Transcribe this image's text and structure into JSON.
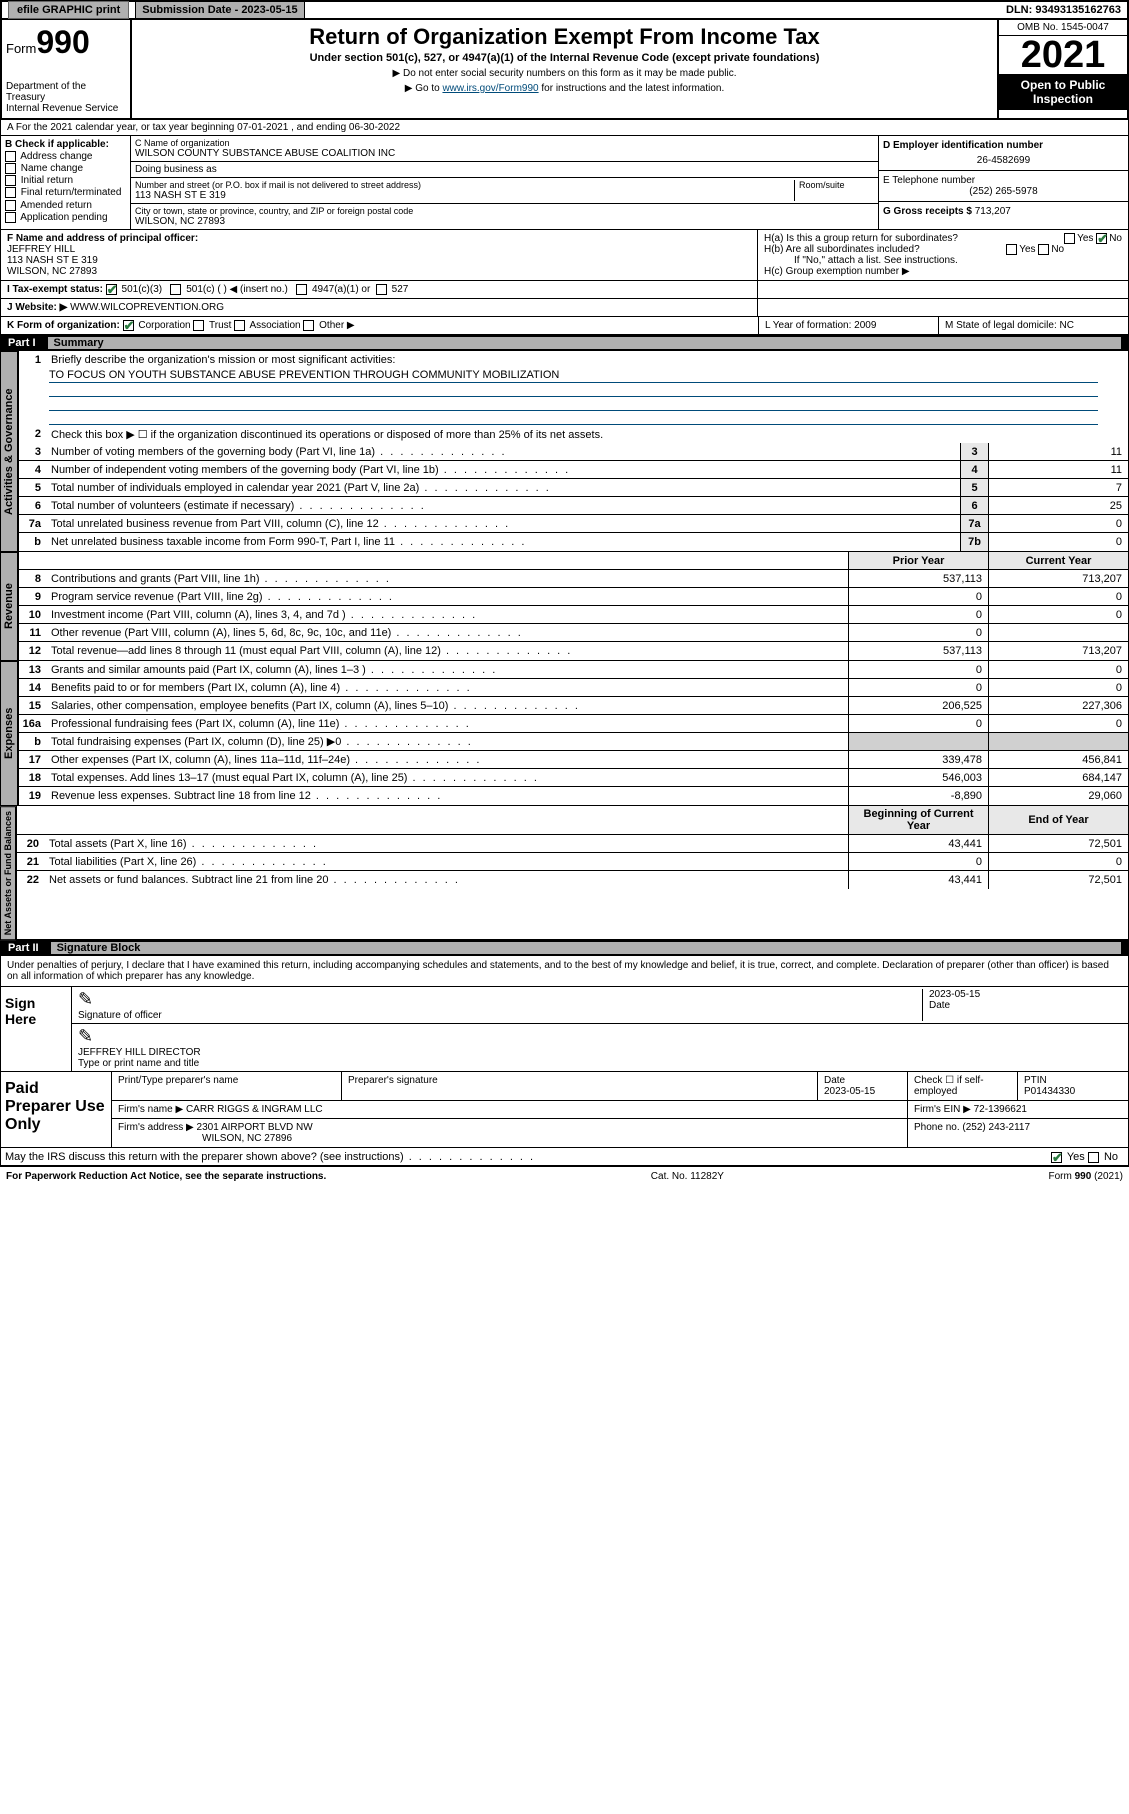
{
  "top": {
    "efile": "efile GRAPHIC print",
    "sub_date_label": "Submission Date - 2023-05-15",
    "dln": "DLN: 93493135162763"
  },
  "header": {
    "form_label": "Form",
    "form_num": "990",
    "dept": "Department of the Treasury",
    "irs": "Internal Revenue Service",
    "title": "Return of Organization Exempt From Income Tax",
    "subtitle": "Under section 501(c), 527, or 4947(a)(1) of the Internal Revenue Code (except private foundations)",
    "note1": "▶ Do not enter social security numbers on this form as it may be made public.",
    "note2_pre": "▶ Go to ",
    "note2_link": "www.irs.gov/Form990",
    "note2_post": " for instructions and the latest information.",
    "omb": "OMB No. 1545-0047",
    "year": "2021",
    "open": "Open to Public Inspection"
  },
  "line_a": "A For the 2021 calendar year, or tax year beginning 07-01-2021   , and ending 06-30-2022",
  "col_b": {
    "label": "B Check if applicable:",
    "items": [
      "Address change",
      "Name change",
      "Initial return",
      "Final return/terminated",
      "Amended return",
      "Application pending"
    ]
  },
  "col_c": {
    "name_label": "C Name of organization",
    "name": "WILSON COUNTY SUBSTANCE ABUSE COALITION INC",
    "dba_label": "Doing business as",
    "addr_label": "Number and street (or P.O. box if mail is not delivered to street address)",
    "room_label": "Room/suite",
    "addr": "113 NASH ST E 319",
    "city_label": "City or town, state or province, country, and ZIP or foreign postal code",
    "city": "WILSON, NC  27893"
  },
  "col_d": {
    "ein_label": "D Employer identification number",
    "ein": "26-4582699",
    "phone_label": "E Telephone number",
    "phone": "(252) 265-5978",
    "gross_label": "G Gross receipts $ ",
    "gross": "713,207"
  },
  "row_f": {
    "label": "F  Name and address of principal officer:",
    "name": "JEFFREY HILL",
    "addr1": "113 NASH ST E 319",
    "addr2": "WILSON, NC  27893"
  },
  "row_h": {
    "ha": "H(a)  Is this a group return for subordinates?",
    "hb": "H(b)  Are all subordinates included?",
    "hb_note": "If \"No,\" attach a list. See instructions.",
    "hc": "H(c)  Group exemption number ▶"
  },
  "row_i": {
    "label": "I   Tax-exempt status:",
    "c3": "501(c)(3)",
    "c": "501(c) (  ) ◀ (insert no.)",
    "a1": "4947(a)(1) or",
    "s527": "527"
  },
  "row_j": {
    "label": "J   Website: ▶",
    "value": "WWW.WILCOPREVENTION.ORG"
  },
  "row_k": {
    "label": "K Form of organization:",
    "corp": "Corporation",
    "trust": "Trust",
    "assoc": "Association",
    "other": "Other ▶",
    "l": "L Year of formation: 2009",
    "m": "M State of legal domicile: NC"
  },
  "part1": {
    "num": "Part I",
    "title": "Summary"
  },
  "summary": {
    "side_ag": "Activities & Governance",
    "side_rev": "Revenue",
    "side_exp": "Expenses",
    "side_na": "Net Assets or Fund Balances",
    "l1": "Briefly describe the organization's mission or most significant activities:",
    "l1v": "TO FOCUS ON YOUTH SUBSTANCE ABUSE PREVENTION THROUGH COMMUNITY MOBILIZATION",
    "l2": "Check this box ▶ ☐  if the organization discontinued its operations or disposed of more than 25% of its net assets.",
    "rows_ag": [
      {
        "n": "3",
        "d": "Number of voting members of the governing body (Part VI, line 1a)",
        "b": "3",
        "v": "11"
      },
      {
        "n": "4",
        "d": "Number of independent voting members of the governing body (Part VI, line 1b)",
        "b": "4",
        "v": "11"
      },
      {
        "n": "5",
        "d": "Total number of individuals employed in calendar year 2021 (Part V, line 2a)",
        "b": "5",
        "v": "7"
      },
      {
        "n": "6",
        "d": "Total number of volunteers (estimate if necessary)",
        "b": "6",
        "v": "25"
      },
      {
        "n": "7a",
        "d": "Total unrelated business revenue from Part VIII, column (C), line 12",
        "b": "7a",
        "v": "0"
      },
      {
        "n": "b",
        "d": "Net unrelated business taxable income from Form 990-T, Part I, line 11",
        "b": "7b",
        "v": "0"
      }
    ],
    "hdr_prior": "Prior Year",
    "hdr_curr": "Current Year",
    "rows_rev": [
      {
        "n": "8",
        "d": "Contributions and grants (Part VIII, line 1h)",
        "p": "537,113",
        "c": "713,207"
      },
      {
        "n": "9",
        "d": "Program service revenue (Part VIII, line 2g)",
        "p": "0",
        "c": "0"
      },
      {
        "n": "10",
        "d": "Investment income (Part VIII, column (A), lines 3, 4, and 7d )",
        "p": "0",
        "c": "0"
      },
      {
        "n": "11",
        "d": "Other revenue (Part VIII, column (A), lines 5, 6d, 8c, 9c, 10c, and 11e)",
        "p": "0",
        "c": ""
      },
      {
        "n": "12",
        "d": "Total revenue—add lines 8 through 11 (must equal Part VIII, column (A), line 12)",
        "p": "537,113",
        "c": "713,207"
      }
    ],
    "rows_exp": [
      {
        "n": "13",
        "d": "Grants and similar amounts paid (Part IX, column (A), lines 1–3 )",
        "p": "0",
        "c": "0"
      },
      {
        "n": "14",
        "d": "Benefits paid to or for members (Part IX, column (A), line 4)",
        "p": "0",
        "c": "0"
      },
      {
        "n": "15",
        "d": "Salaries, other compensation, employee benefits (Part IX, column (A), lines 5–10)",
        "p": "206,525",
        "c": "227,306"
      },
      {
        "n": "16a",
        "d": "Professional fundraising fees (Part IX, column (A), line 11e)",
        "p": "0",
        "c": "0"
      },
      {
        "n": "b",
        "d": "Total fundraising expenses (Part IX, column (D), line 25) ▶0",
        "p": "",
        "c": "",
        "shade": true
      },
      {
        "n": "17",
        "d": "Other expenses (Part IX, column (A), lines 11a–11d, 11f–24e)",
        "p": "339,478",
        "c": "456,841"
      },
      {
        "n": "18",
        "d": "Total expenses. Add lines 13–17 (must equal Part IX, column (A), line 25)",
        "p": "546,003",
        "c": "684,147"
      },
      {
        "n": "19",
        "d": "Revenue less expenses. Subtract line 18 from line 12",
        "p": "-8,890",
        "c": "29,060"
      }
    ],
    "hdr_beg": "Beginning of Current Year",
    "hdr_end": "End of Year",
    "rows_na": [
      {
        "n": "20",
        "d": "Total assets (Part X, line 16)",
        "p": "43,441",
        "c": "72,501"
      },
      {
        "n": "21",
        "d": "Total liabilities (Part X, line 26)",
        "p": "0",
        "c": "0"
      },
      {
        "n": "22",
        "d": "Net assets or fund balances. Subtract line 21 from line 20",
        "p": "43,441",
        "c": "72,501"
      }
    ]
  },
  "part2": {
    "num": "Part II",
    "title": "Signature Block"
  },
  "sig": {
    "decl": "Under penalties of perjury, I declare that I have examined this return, including accompanying schedules and statements, and to the best of my knowledge and belief, it is true, correct, and complete. Declaration of preparer (other than officer) is based on all information of which preparer has any knowledge.",
    "sign_here": "Sign Here",
    "sig_officer": "Signature of officer",
    "date": "2023-05-15",
    "date_lbl": "Date",
    "typed": "JEFFREY HILL DIRECTOR",
    "typed_lbl": "Type or print name and title",
    "paid": "Paid Preparer Use Only",
    "prep_name_lbl": "Print/Type preparer's name",
    "prep_sig_lbl": "Preparer's signature",
    "prep_date_lbl": "Date",
    "prep_date": "2023-05-15",
    "check_lbl": "Check ☐ if self-employed",
    "ptin_lbl": "PTIN",
    "ptin": "P01434330",
    "firm_name_lbl": "Firm's name    ▶",
    "firm_name": "CARR RIGGS & INGRAM LLC",
    "firm_ein_lbl": "Firm's EIN ▶",
    "firm_ein": "72-1396621",
    "firm_addr_lbl": "Firm's address ▶",
    "firm_addr": "2301 AIRPORT BLVD NW",
    "firm_city": "WILSON, NC  27896",
    "firm_phone_lbl": "Phone no.",
    "firm_phone": "(252) 243-2117",
    "may_irs": "May the IRS discuss this return with the preparer shown above? (see instructions)",
    "yes": "Yes",
    "no": "No"
  },
  "footer": {
    "pra": "For Paperwork Reduction Act Notice, see the separate instructions.",
    "cat": "Cat. No. 11282Y",
    "form": "Form 990 (2021)"
  }
}
